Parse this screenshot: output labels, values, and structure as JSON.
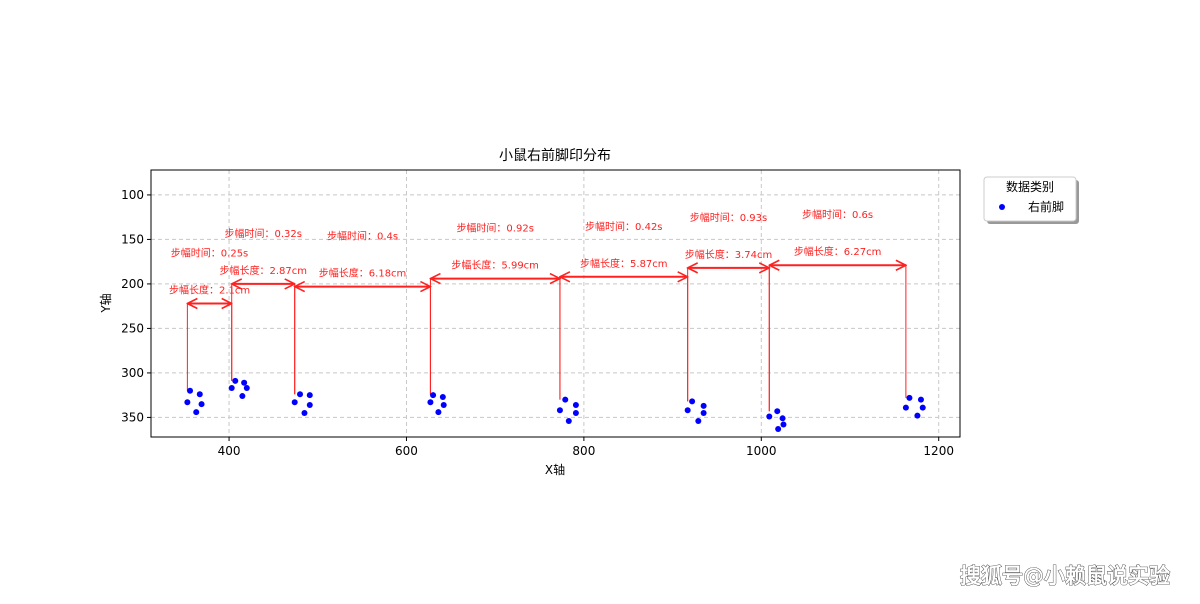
{
  "chart_data": {
    "type": "scatter",
    "title": "小鼠右前脚印分布",
    "x_label": "X轴",
    "y_label": "Y轴",
    "xlim": [
      312,
      1224
    ],
    "ylim": [
      72,
      372
    ],
    "y_inverted": true,
    "xticks": [
      400,
      600,
      800,
      1000,
      1200
    ],
    "yticks": [
      100,
      150,
      200,
      250,
      300,
      350
    ],
    "grid": true,
    "legend_title": "数据类别",
    "legend_position": "outside-upper-right",
    "series": [
      {
        "name": "右前脚",
        "color": "#0000ff",
        "x": [
          356,
          353,
          367,
          369,
          363,
          407,
          417,
          403,
          420,
          415,
          480,
          474,
          491,
          491,
          485,
          630,
          627,
          641,
          642,
          636,
          779,
          773,
          791,
          791,
          783,
          922,
          917,
          935,
          935,
          929,
          1018,
          1009,
          1024,
          1025,
          1019,
          1167,
          1163,
          1180,
          1182,
          1176
        ],
        "values": [
          320,
          333,
          324,
          335,
          344,
          309,
          311,
          317,
          317,
          326,
          324,
          333,
          325,
          336,
          345,
          325,
          333,
          327,
          336,
          344,
          330,
          342,
          336,
          345,
          354,
          332,
          342,
          337,
          345,
          354,
          343,
          349,
          351,
          358,
          363,
          328,
          339,
          330,
          339,
          348
        ]
      }
    ],
    "annotation_color": "#ff2020",
    "annotations": [
      {
        "x1": 353,
        "x2": 403,
        "y": 222,
        "length_label": "步幅长度：2.1cm",
        "time_label": "步幅时间：0.25s"
      },
      {
        "x1": 403,
        "x2": 474,
        "y": 200,
        "length_label": "步幅长度：2.87cm",
        "time_label": "步幅时间：0.32s"
      },
      {
        "x1": 474,
        "x2": 627,
        "y": 203,
        "length_label": "步幅长度：6.18cm",
        "time_label": "步幅时间：0.4s"
      },
      {
        "x1": 627,
        "x2": 773,
        "y": 194,
        "length_label": "步幅长度：5.99cm",
        "time_label": "步幅时间：0.92s"
      },
      {
        "x1": 773,
        "x2": 917,
        "y": 192,
        "length_label": "步幅长度：5.87cm",
        "time_label": "步幅时间：0.42s"
      },
      {
        "x1": 917,
        "x2": 1009,
        "y": 182,
        "length_label": "步幅长度：3.74cm",
        "time_label": "步幅时间：0.93s"
      },
      {
        "x1": 1009,
        "x2": 1163,
        "y": 179,
        "length_label": "步幅长度：6.27cm",
        "time_label": "步幅时间：0.6s"
      }
    ]
  },
  "watermark": "搜狐号@小赖鼠说实验"
}
